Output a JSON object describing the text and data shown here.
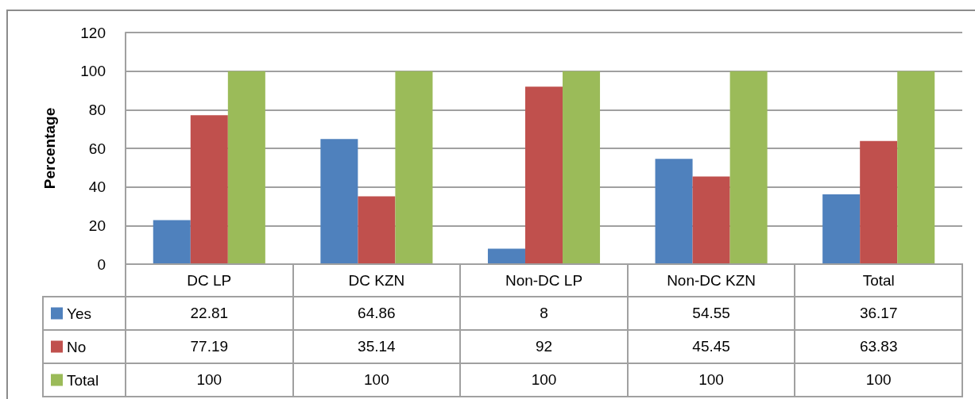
{
  "chart_data": {
    "type": "bar",
    "categories": [
      "DC LP",
      "DC KZN",
      "Non-DC LP",
      "Non-DC KZN",
      "Total"
    ],
    "series": [
      {
        "name": "Yes",
        "color": "#4f81bd",
        "values": [
          22.81,
          64.86,
          8,
          54.55,
          36.17
        ]
      },
      {
        "name": "No",
        "color": "#c0504d",
        "values": [
          77.19,
          35.14,
          92,
          45.45,
          63.83
        ]
      },
      {
        "name": "Total",
        "color": "#9bbb59",
        "values": [
          100,
          100,
          100,
          100,
          100
        ]
      }
    ],
    "ylabel": "Percentage",
    "ylim": [
      0,
      120
    ],
    "yticks": [
      0,
      20,
      40,
      60,
      80,
      100,
      120
    ],
    "grid": "y",
    "legend": "bottom left",
    "data_labels": true
  }
}
